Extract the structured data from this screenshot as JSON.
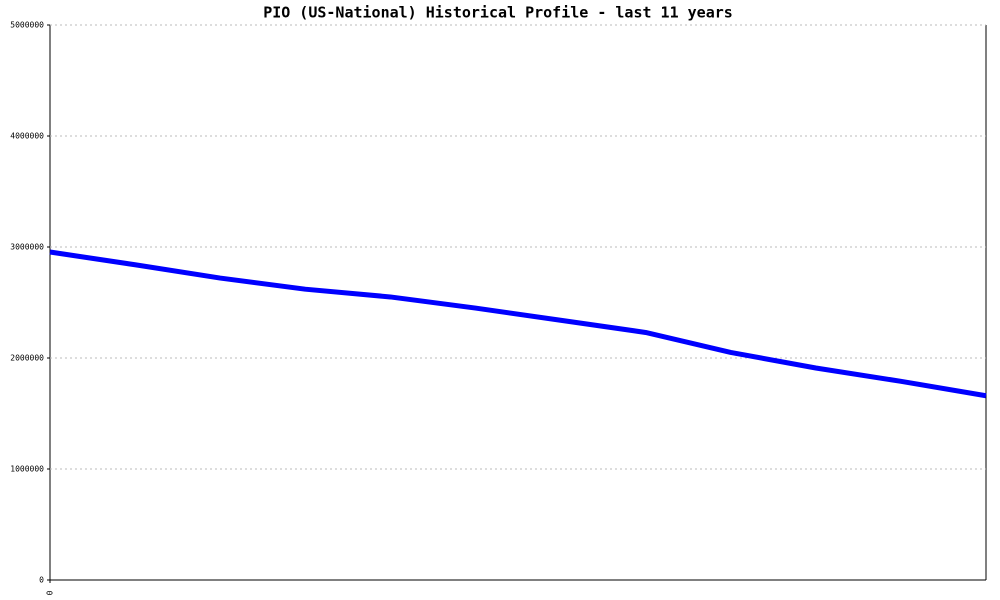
{
  "chart_data": {
    "type": "line",
    "title": "PIO (US-National) Historical Profile - last 11 years",
    "categories": [
      "0",
      null,
      null,
      null,
      null,
      null,
      null,
      null,
      null,
      null,
      null,
      null
    ],
    "series": [
      {
        "name": "PIO",
        "color": "#0000ff",
        "values": [
          2955000,
          2840000,
          2720000,
          2620000,
          2550000,
          2450000,
          2340000,
          2230000,
          2050000,
          1910000,
          1790000,
          1660000
        ]
      }
    ],
    "ylim": [
      0,
      5000000
    ],
    "yticks": [
      0,
      1000000,
      2000000,
      3000000,
      4000000,
      5000000
    ],
    "grid": true
  }
}
